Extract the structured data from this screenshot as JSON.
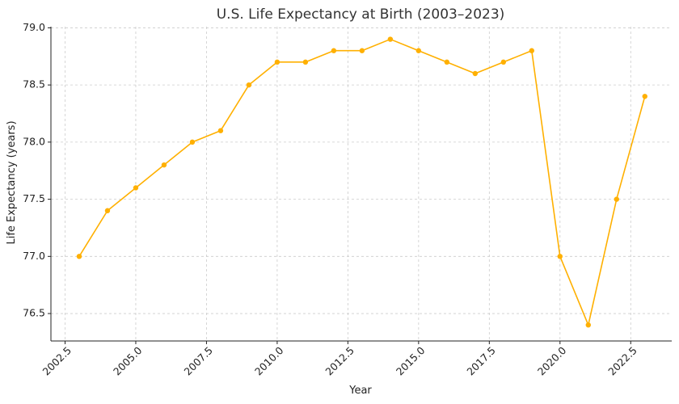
{
  "chart_data": {
    "type": "line",
    "title": "U.S. Life Expectancy at Birth (2003–2023)",
    "xlabel": "Year",
    "ylabel": "Life Expectancy (years)",
    "xlim": [
      2002.0,
      2023.95
    ],
    "ylim": [
      76.26,
      79.01
    ],
    "x_ticks": [
      2002.5,
      2005.0,
      2007.5,
      2010.0,
      2012.5,
      2015.0,
      2017.5,
      2020.0,
      2022.5
    ],
    "x_tick_labels": [
      "2002.5",
      "2005.0",
      "2007.5",
      "2010.0",
      "2012.5",
      "2015.0",
      "2017.5",
      "2020.0",
      "2022.5"
    ],
    "y_ticks": [
      76.5,
      77.0,
      77.5,
      78.0,
      78.5,
      79.0
    ],
    "y_tick_labels": [
      "76.5",
      "77.0",
      "77.5",
      "78.0",
      "78.5",
      "79.0"
    ],
    "grid": true,
    "legend": "none",
    "color": "#FFB000",
    "series": [
      {
        "x": [
          2003,
          2004,
          2005,
          2006,
          2007,
          2008,
          2009,
          2010,
          2011,
          2012,
          2013,
          2014,
          2015,
          2016,
          2017,
          2018,
          2019,
          2020,
          2021,
          2022,
          2023
        ],
        "values": [
          77.0,
          77.4,
          77.6,
          77.8,
          78.0,
          78.1,
          78.5,
          78.7,
          78.7,
          78.8,
          78.8,
          78.9,
          78.8,
          78.7,
          78.6,
          78.7,
          78.8,
          77.0,
          76.4,
          77.5,
          78.4
        ]
      }
    ]
  }
}
